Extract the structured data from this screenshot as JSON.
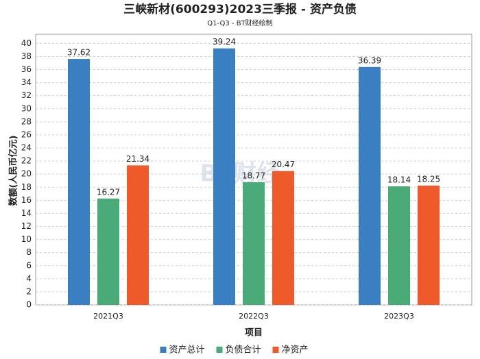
{
  "chart_data": {
    "type": "bar",
    "title": "三峡新材(600293)2023三季报 - 资产负债",
    "subtitle": "Q1-Q3 - BT财经绘制",
    "x_label": "项目",
    "y_label": "数额(人民币亿元)",
    "categories": [
      "2021Q3",
      "2022Q3",
      "2023Q3"
    ],
    "series": [
      {
        "name": "资产总计",
        "color": "#3a7fc1",
        "values": [
          37.62,
          39.24,
          36.39
        ]
      },
      {
        "name": "负债合计",
        "color": "#4aab78",
        "values": [
          16.27,
          18.77,
          18.14
        ]
      },
      {
        "name": "净资产",
        "color": "#ef5a2a",
        "values": [
          21.34,
          20.47,
          18.25
        ]
      }
    ],
    "ylim": [
      0,
      41.4
    ],
    "yticks": [
      0,
      2,
      4,
      6,
      8,
      10,
      12,
      14,
      16,
      18,
      20,
      22,
      24,
      26,
      28,
      30,
      32,
      34,
      36,
      38,
      40
    ],
    "grid": true,
    "legend": "bottom",
    "watermark": "BT财经"
  }
}
